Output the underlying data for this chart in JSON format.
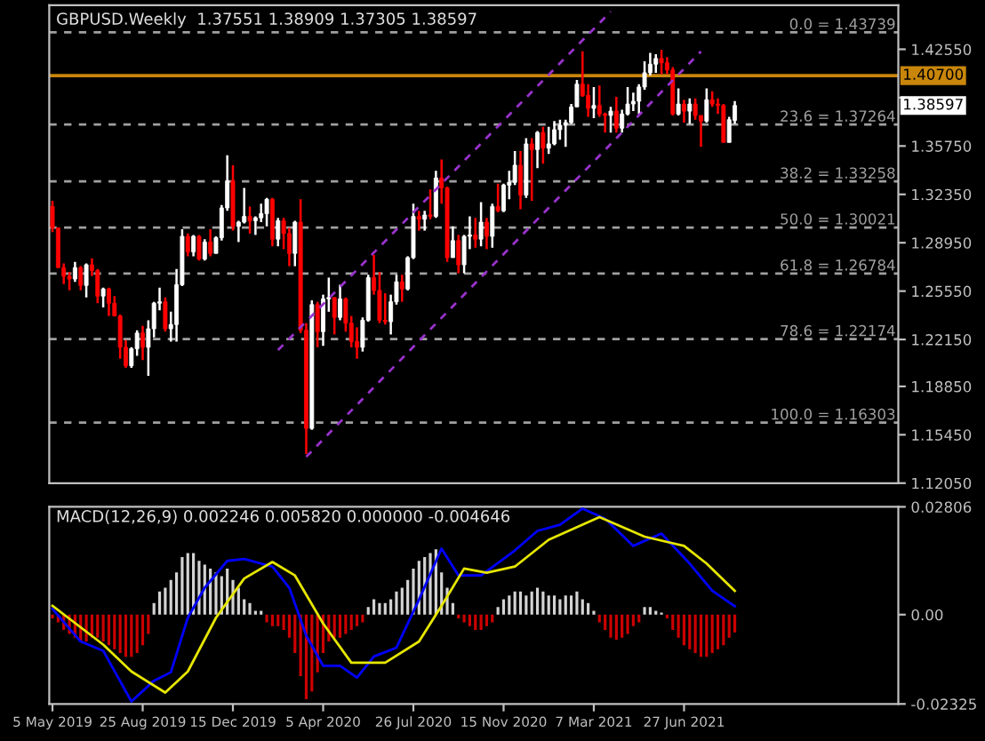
{
  "chart_data": [
    {
      "type": "candlestick",
      "title": "GBPUSD.Weekly  1.37551 1.38909 1.37305 1.38597",
      "x": [
        "2019-05-05",
        "2019-05-12",
        "2019-05-19",
        "2019-05-26",
        "2019-06-02",
        "2019-06-09",
        "2019-06-16",
        "2019-06-23",
        "2019-06-30",
        "2019-07-07",
        "2019-07-14",
        "2019-07-21",
        "2019-07-28",
        "2019-08-04",
        "2019-08-11",
        "2019-08-18",
        "2019-08-25",
        "2019-09-01",
        "2019-09-08",
        "2019-09-15",
        "2019-09-22",
        "2019-09-29",
        "2019-10-06",
        "2019-10-13",
        "2019-10-20",
        "2019-10-27",
        "2019-11-03",
        "2019-11-10",
        "2019-11-17",
        "2019-11-24",
        "2019-12-01",
        "2019-12-08",
        "2019-12-15",
        "2019-12-22",
        "2019-12-29",
        "2020-01-05",
        "2020-01-12",
        "2020-01-19",
        "2020-01-26",
        "2020-02-02",
        "2020-02-09",
        "2020-02-16",
        "2020-02-23",
        "2020-03-01",
        "2020-03-08",
        "2020-03-15",
        "2020-03-22",
        "2020-03-29",
        "2020-04-05",
        "2020-04-12",
        "2020-04-19",
        "2020-04-26",
        "2020-05-03",
        "2020-05-10",
        "2020-05-17",
        "2020-05-24",
        "2020-05-31",
        "2020-06-07",
        "2020-06-14",
        "2020-06-21",
        "2020-06-28",
        "2020-07-05",
        "2020-07-12",
        "2020-07-19",
        "2020-07-26",
        "2020-08-02",
        "2020-08-09",
        "2020-08-16",
        "2020-08-23",
        "2020-08-30",
        "2020-09-06",
        "2020-09-13",
        "2020-09-20",
        "2020-09-27",
        "2020-10-04",
        "2020-10-11",
        "2020-10-18",
        "2020-10-25",
        "2020-11-01",
        "2020-11-08",
        "2020-11-15",
        "2020-11-22",
        "2020-11-29",
        "2020-12-06",
        "2020-12-13",
        "2020-12-20",
        "2020-12-27",
        "2021-01-03",
        "2021-01-10",
        "2021-01-17",
        "2021-01-24",
        "2021-01-31",
        "2021-02-07",
        "2021-02-14",
        "2021-02-21",
        "2021-02-28",
        "2021-03-07",
        "2021-03-14",
        "2021-03-21",
        "2021-03-28",
        "2021-04-04",
        "2021-04-11",
        "2021-04-18",
        "2021-04-25",
        "2021-05-02",
        "2021-05-09",
        "2021-05-16",
        "2021-05-23",
        "2021-05-30",
        "2021-06-06",
        "2021-06-13",
        "2021-06-20",
        "2021-06-27",
        "2021-07-04",
        "2021-07-11",
        "2021-07-18",
        "2021-07-25",
        "2021-08-01",
        "2021-08-08",
        "2021-08-15",
        "2021-08-22",
        "2021-08-29"
      ],
      "ohlc": [
        [
          1.315,
          1.319,
          1.297,
          1.3
        ],
        [
          1.3,
          1.3,
          1.272,
          1.272
        ],
        [
          1.272,
          1.275,
          1.2605,
          1.266
        ],
        [
          1.266,
          1.269,
          1.256,
          1.264
        ],
        [
          1.264,
          1.276,
          1.262,
          1.272
        ],
        [
          1.272,
          1.273,
          1.256,
          1.2595
        ],
        [
          1.2595,
          1.275,
          1.251,
          1.274
        ],
        [
          1.274,
          1.2785,
          1.266,
          1.27
        ],
        [
          1.27,
          1.271,
          1.247,
          1.252
        ],
        [
          1.252,
          1.258,
          1.244,
          1.257
        ],
        [
          1.257,
          1.258,
          1.238,
          1.247
        ],
        [
          1.247,
          1.252,
          1.238,
          1.238
        ],
        [
          1.238,
          1.239,
          1.208,
          1.216
        ],
        [
          1.216,
          1.221,
          1.2015,
          1.203
        ],
        [
          1.203,
          1.216,
          1.2015,
          1.215
        ],
        [
          1.215,
          1.228,
          1.21,
          1.226
        ],
        [
          1.226,
          1.231,
          1.207,
          1.216
        ],
        [
          1.216,
          1.235,
          1.196,
          1.229
        ],
        [
          1.229,
          1.248,
          1.223,
          1.247
        ],
        [
          1.247,
          1.258,
          1.242,
          1.248
        ],
        [
          1.248,
          1.251,
          1.227,
          1.229
        ],
        [
          1.229,
          1.241,
          1.22,
          1.232
        ],
        [
          1.232,
          1.271,
          1.22,
          1.26
        ],
        [
          1.26,
          1.299,
          1.259,
          1.294
        ],
        [
          1.294,
          1.296,
          1.28,
          1.283
        ],
        [
          1.283,
          1.295,
          1.28,
          1.294
        ],
        [
          1.294,
          1.295,
          1.277,
          1.278
        ],
        [
          1.278,
          1.292,
          1.277,
          1.29
        ],
        [
          1.29,
          1.299,
          1.28,
          1.282
        ],
        [
          1.282,
          1.294,
          1.282,
          1.293
        ],
        [
          1.293,
          1.316,
          1.291,
          1.314
        ],
        [
          1.314,
          1.351,
          1.312,
          1.333
        ],
        [
          1.333,
          1.344,
          1.298,
          1.301
        ],
        [
          1.301,
          1.305,
          1.29,
          1.304
        ],
        [
          1.304,
          1.328,
          1.303,
          1.308
        ],
        [
          1.308,
          1.315,
          1.296,
          1.305
        ],
        [
          1.305,
          1.308,
          1.295,
          1.307
        ],
        [
          1.307,
          1.317,
          1.304,
          1.31
        ],
        [
          1.31,
          1.321,
          1.301,
          1.32
        ],
        [
          1.32,
          1.321,
          1.287,
          1.292
        ],
        [
          1.292,
          1.307,
          1.287,
          1.305
        ],
        [
          1.305,
          1.307,
          1.285,
          1.296
        ],
        [
          1.296,
          1.3,
          1.273,
          1.282
        ],
        [
          1.282,
          1.305,
          1.273,
          1.304
        ],
        [
          1.304,
          1.32,
          1.226,
          1.228
        ],
        [
          1.228,
          1.233,
          1.141,
          1.159
        ],
        [
          1.159,
          1.249,
          1.158,
          1.246
        ],
        [
          1.246,
          1.248,
          1.216,
          1.227
        ],
        [
          1.227,
          1.253,
          1.217,
          1.25
        ],
        [
          1.25,
          1.265,
          1.241,
          1.251
        ],
        [
          1.251,
          1.251,
          1.225,
          1.237
        ],
        [
          1.237,
          1.26,
          1.235,
          1.25
        ],
        [
          1.25,
          1.251,
          1.227,
          1.233
        ],
        [
          1.233,
          1.238,
          1.216,
          1.22
        ],
        [
          1.22,
          1.23,
          1.208,
          1.216
        ],
        [
          1.216,
          1.237,
          1.213,
          1.235
        ],
        [
          1.235,
          1.267,
          1.234,
          1.265
        ],
        [
          1.265,
          1.281,
          1.253,
          1.256
        ],
        [
          1.256,
          1.269,
          1.233,
          1.235
        ],
        [
          1.235,
          1.254,
          1.232,
          1.234
        ],
        [
          1.234,
          1.253,
          1.225,
          1.248
        ],
        [
          1.248,
          1.267,
          1.246,
          1.262
        ],
        [
          1.262,
          1.267,
          1.248,
          1.257
        ],
        [
          1.257,
          1.28,
          1.256,
          1.279
        ],
        [
          1.279,
          1.317,
          1.278,
          1.308
        ],
        [
          1.308,
          1.312,
          1.298,
          1.306
        ],
        [
          1.306,
          1.312,
          1.298,
          1.309
        ],
        [
          1.309,
          1.327,
          1.306,
          1.308
        ],
        [
          1.308,
          1.34,
          1.307,
          1.335
        ],
        [
          1.335,
          1.348,
          1.317,
          1.328
        ],
        [
          1.328,
          1.329,
          1.276,
          1.279
        ],
        [
          1.279,
          1.301,
          1.279,
          1.291
        ],
        [
          1.291,
          1.295,
          1.268,
          1.274
        ],
        [
          1.274,
          1.295,
          1.268,
          1.294
        ],
        [
          1.294,
          1.308,
          1.285,
          1.295
        ],
        [
          1.295,
          1.307,
          1.286,
          1.292
        ],
        [
          1.292,
          1.318,
          1.287,
          1.304
        ],
        [
          1.304,
          1.307,
          1.285,
          1.294
        ],
        [
          1.294,
          1.317,
          1.286,
          1.315
        ],
        [
          1.315,
          1.331,
          1.311,
          1.312
        ],
        [
          1.312,
          1.331,
          1.311,
          1.33
        ],
        [
          1.33,
          1.34,
          1.32,
          1.332
        ],
        [
          1.332,
          1.354,
          1.33,
          1.344
        ],
        [
          1.344,
          1.354,
          1.313,
          1.323
        ],
        [
          1.323,
          1.363,
          1.321,
          1.359
        ],
        [
          1.359,
          1.363,
          1.319,
          1.355
        ],
        [
          1.355,
          1.368,
          1.342,
          1.367
        ],
        [
          1.367,
          1.371,
          1.345,
          1.356
        ],
        [
          1.356,
          1.371,
          1.352,
          1.359
        ],
        [
          1.359,
          1.375,
          1.358,
          1.369
        ],
        [
          1.369,
          1.376,
          1.362,
          1.372
        ],
        [
          1.372,
          1.376,
          1.357,
          1.374
        ],
        [
          1.374,
          1.387,
          1.373,
          1.385
        ],
        [
          1.385,
          1.404,
          1.385,
          1.401
        ],
        [
          1.401,
          1.424,
          1.392,
          1.393
        ],
        [
          1.393,
          1.401,
          1.378,
          1.384
        ],
        [
          1.384,
          1.399,
          1.377,
          1.386
        ],
        [
          1.386,
          1.4,
          1.378,
          1.38
        ],
        [
          1.38,
          1.381,
          1.367,
          1.379
        ],
        [
          1.379,
          1.385,
          1.367,
          1.382
        ],
        [
          1.382,
          1.392,
          1.367,
          1.37
        ],
        [
          1.37,
          1.383,
          1.367,
          1.38
        ],
        [
          1.38,
          1.399,
          1.379,
          1.387
        ],
        [
          1.387,
          1.395,
          1.382,
          1.389
        ],
        [
          1.389,
          1.401,
          1.38,
          1.399
        ],
        [
          1.399,
          1.417,
          1.397,
          1.409
        ],
        [
          1.409,
          1.423,
          1.407,
          1.415
        ],
        [
          1.415,
          1.422,
          1.409,
          1.419
        ],
        [
          1.419,
          1.425,
          1.408,
          1.416
        ],
        [
          1.416,
          1.42,
          1.408,
          1.411
        ],
        [
          1.411,
          1.413,
          1.379,
          1.38
        ],
        [
          1.38,
          1.398,
          1.379,
          1.387
        ],
        [
          1.387,
          1.39,
          1.374,
          1.382
        ],
        [
          1.382,
          1.391,
          1.373,
          1.387
        ],
        [
          1.387,
          1.391,
          1.376,
          1.379
        ],
        [
          1.379,
          1.379,
          1.357,
          1.375
        ],
        [
          1.375,
          1.398,
          1.374,
          1.39
        ],
        [
          1.39,
          1.396,
          1.385,
          1.387
        ],
        [
          1.387,
          1.391,
          1.38,
          1.386
        ],
        [
          1.386,
          1.387,
          1.36,
          1.36
        ],
        [
          1.36,
          1.378,
          1.36,
          1.376
        ],
        [
          1.37551,
          1.38909,
          1.37305,
          1.38597
        ]
      ],
      "colors": [
        "#ff0000",
        "#ff0000",
        "#ff0000",
        "#ff0000",
        "#ffffff",
        "#ff0000",
        "#ffffff",
        "#ff0000",
        "#ff0000",
        "#ffffff",
        "#ff0000",
        "#ff0000",
        "#ff0000",
        "#ff0000",
        "#ffffff",
        "#ffffff",
        "#ff0000",
        "#ffffff",
        "#ffffff",
        "#ffffff",
        "#ff0000",
        "#ffffff",
        "#ffffff",
        "#ffffff",
        "#ff0000",
        "#ffffff",
        "#ff0000",
        "#ffffff",
        "#ff0000",
        "#ffffff",
        "#ffffff",
        "#ffffff",
        "#ff0000",
        "#ffffff",
        "#ffffff",
        "#ff0000",
        "#ffffff",
        "#ffffff",
        "#ffffff",
        "#ff0000",
        "#ffffff",
        "#ff0000",
        "#ff0000",
        "#ffffff",
        "#ff0000",
        "#ff0000",
        "#ffffff",
        "#ff0000",
        "#ffffff",
        "#ffffff",
        "#ff0000",
        "#ffffff",
        "#ff0000",
        "#ff0000",
        "#ff0000",
        "#ffffff",
        "#ffffff",
        "#ff0000",
        "#ff0000",
        "#ff0000",
        "#ffffff",
        "#ffffff",
        "#ff0000",
        "#ffffff",
        "#ffffff",
        "#ff0000",
        "#ffffff",
        "#ff0000",
        "#ffffff",
        "#ff0000",
        "#ff0000",
        "#ffffff",
        "#ff0000",
        "#ffffff",
        "#ffffff",
        "#ff0000",
        "#ffffff",
        "#ff0000",
        "#ffffff",
        "#ff0000",
        "#ffffff",
        "#ffffff",
        "#ffffff",
        "#ff0000",
        "#ffffff",
        "#ff0000",
        "#ffffff",
        "#ff0000",
        "#ffffff",
        "#ffffff",
        "#ffffff",
        "#ffffff",
        "#ffffff",
        "#ffffff",
        "#ff0000",
        "#ff0000",
        "#ffffff",
        "#ff0000",
        "#ff0000",
        "#ffffff",
        "#ff0000",
        "#ffffff",
        "#ffffff",
        "#ffffff",
        "#ffffff",
        "#ffffff",
        "#ffffff",
        "#ffffff",
        "#ff0000",
        "#ff0000",
        "#ff0000",
        "#ffffff",
        "#ff0000",
        "#ffffff",
        "#ff0000",
        "#ff0000",
        "#ffffff",
        "#ff0000",
        "#ff0000",
        "#ff0000",
        "#ffffff",
        "#ffffff"
      ],
      "series": [
        {
          "type": "line",
          "color": "#9932cc",
          "line_style": "dashed",
          "x": [
            "2020-02-09",
            "2021-03-28"
          ],
          "values": [
            1.214,
            1.452
          ]
        },
        {
          "type": "line",
          "color": "#9932cc",
          "line_style": "dashed",
          "x": [
            "2020-03-15",
            "2021-07-18"
          ],
          "values": [
            1.139,
            1.424
          ]
        }
      ],
      "ref_lines": [
        {
          "axis": "y",
          "value": 1.43739,
          "label": "0.0 = 1.43739",
          "color": "#a0a0a0",
          "line_style": "dashed"
        },
        {
          "axis": "y",
          "value": 1.407,
          "label": "1.40700",
          "color": "#c8860a",
          "line_style": "solid"
        },
        {
          "axis": "y",
          "value": 1.37264,
          "label": "23.6 = 1.37264",
          "color": "#a0a0a0",
          "line_style": "dashed"
        },
        {
          "axis": "y",
          "value": 1.33258,
          "label": "38.2 = 1.33258",
          "color": "#a0a0a0",
          "line_style": "dashed"
        },
        {
          "axis": "y",
          "value": 1.30021,
          "label": "50.0 = 1.30021",
          "color": "#a0a0a0",
          "line_style": "dashed"
        },
        {
          "axis": "y",
          "value": 1.26784,
          "label": "61.8 = 1.26784",
          "color": "#a0a0a0",
          "line_style": "dashed"
        },
        {
          "axis": "y",
          "value": 1.22174,
          "label": "78.6 = 1.22174",
          "color": "#a0a0a0",
          "line_style": "dashed"
        },
        {
          "axis": "y",
          "value": 1.16303,
          "label": "100.0 = 1.16303",
          "color": "#a0a0a0",
          "line_style": "dashed"
        }
      ],
      "annotations": [
        "1.38597"
      ],
      "xlim": [
        "2019-05-01",
        "2022-03-20"
      ],
      "ylim": [
        1.1205,
        1.4565
      ],
      "yticks": [
        {
          "value": 1.4255,
          "label": "1.42550"
        },
        {
          "value": 1.3915,
          "label": null
        },
        {
          "value": 1.3575,
          "label": "1.35750"
        },
        {
          "value": 1.3235,
          "label": "1.32350"
        },
        {
          "value": 1.2895,
          "label": "1.28950"
        },
        {
          "value": 1.2555,
          "label": "1.25550"
        },
        {
          "value": 1.2215,
          "label": "1.22150"
        },
        {
          "value": 1.1885,
          "label": "1.18850"
        },
        {
          "value": 1.1545,
          "label": "1.15450"
        },
        {
          "value": 1.1205,
          "label": "1.12050"
        }
      ],
      "tick_labels": "y"
    },
    {
      "type": "bar",
      "title": "MACD(12,26,9) 0.002246 0.005820 0.000000 -0.004646",
      "x": [
        "2019-05-05",
        "2019-05-12",
        "2019-05-19",
        "2019-05-26",
        "2019-06-02",
        "2019-06-09",
        "2019-06-16",
        "2019-06-23",
        "2019-06-30",
        "2019-07-07",
        "2019-07-14",
        "2019-07-21",
        "2019-07-28",
        "2019-08-04",
        "2019-08-11",
        "2019-08-18",
        "2019-08-25",
        "2019-09-01",
        "2019-09-08",
        "2019-09-15",
        "2019-09-22",
        "2019-09-29",
        "2019-10-06",
        "2019-10-13",
        "2019-10-20",
        "2019-10-27",
        "2019-11-03",
        "2019-11-10",
        "2019-11-17",
        "2019-11-24",
        "2019-12-01",
        "2019-12-08",
        "2019-12-15",
        "2019-12-22",
        "2019-12-29",
        "2020-01-05",
        "2020-01-12",
        "2020-01-19",
        "2020-01-26",
        "2020-02-02",
        "2020-02-09",
        "2020-02-16",
        "2020-02-23",
        "2020-03-01",
        "2020-03-08",
        "2020-03-15",
        "2020-03-22",
        "2020-03-29",
        "2020-04-05",
        "2020-04-12",
        "2020-04-19",
        "2020-04-26",
        "2020-05-03",
        "2020-05-10",
        "2020-05-17",
        "2020-05-24",
        "2020-05-31",
        "2020-06-07",
        "2020-06-14",
        "2020-06-21",
        "2020-06-28",
        "2020-07-05",
        "2020-07-12",
        "2020-07-19",
        "2020-07-26",
        "2020-08-02",
        "2020-08-09",
        "2020-08-16",
        "2020-08-23",
        "2020-08-30",
        "2020-09-06",
        "2020-09-13",
        "2020-09-20",
        "2020-09-27",
        "2020-10-04",
        "2020-10-11",
        "2020-10-18",
        "2020-10-25",
        "2020-11-01",
        "2020-11-08",
        "2020-11-15",
        "2020-11-22",
        "2020-11-29",
        "2020-12-06",
        "2020-12-13",
        "2020-12-20",
        "2020-12-27",
        "2021-01-03",
        "2021-01-10",
        "2021-01-17",
        "2021-01-24",
        "2021-01-31",
        "2021-02-07",
        "2021-02-14",
        "2021-02-21",
        "2021-02-28",
        "2021-03-07",
        "2021-03-14",
        "2021-03-21",
        "2021-03-28",
        "2021-04-04",
        "2021-04-11",
        "2021-04-18",
        "2021-04-25",
        "2021-05-02",
        "2021-05-09",
        "2021-05-16",
        "2021-05-23",
        "2021-05-30",
        "2021-06-06",
        "2021-06-13",
        "2021-06-20",
        "2021-06-27",
        "2021-07-04",
        "2021-07-11",
        "2021-07-18",
        "2021-07-25",
        "2021-08-01",
        "2021-08-08",
        "2021-08-15",
        "2021-08-22",
        "2021-08-29"
      ],
      "series": [
        {
          "type": "bar",
          "values": [
            -0.001,
            -0.002,
            -0.004,
            -0.005,
            -0.006,
            -0.007,
            -0.007,
            -0.006,
            -0.006,
            -0.007,
            -0.008,
            -0.009,
            -0.01,
            -0.011,
            -0.011,
            -0.01,
            -0.008,
            -0.005,
            0.003,
            0.006,
            0.007,
            0.009,
            0.011,
            0.015,
            0.016,
            0.016,
            0.014,
            0.013,
            0.012,
            0.011,
            0.01,
            0.012,
            0.009,
            0.007,
            0.004,
            0.003,
            0.001,
            0.001,
            -0.002,
            -0.003,
            -0.003,
            -0.004,
            -0.006,
            -0.01,
            -0.016,
            -0.022,
            -0.02,
            -0.015,
            -0.01,
            -0.007,
            -0.006,
            -0.006,
            -0.005,
            -0.004,
            -0.003,
            -0.002,
            0.002,
            0.004,
            0.003,
            0.003,
            0.004,
            0.006,
            0.007,
            0.009,
            0.012,
            0.014,
            0.015,
            0.016,
            0.017,
            0.011,
            0.007,
            0.003,
            -0.001,
            -0.002,
            -0.003,
            -0.004,
            -0.004,
            -0.003,
            -0.002,
            0.002,
            0.004,
            0.005,
            0.006,
            0.006,
            0.005,
            0.006,
            0.007,
            0.006,
            0.005,
            0.005,
            0.004,
            0.005,
            0.005,
            0.006,
            0.004,
            0.003,
            0.001,
            -0.002,
            -0.004,
            -0.006,
            -0.0065,
            -0.006,
            -0.005,
            -0.003,
            -0.002,
            0.002,
            0.002,
            0.001,
            0.0005,
            -0.001,
            -0.004,
            -0.006,
            -0.008,
            -0.009,
            -0.01,
            -0.011,
            -0.011,
            -0.01,
            -0.009,
            -0.008,
            -0.006,
            -0.0046
          ],
          "colors": [
            "#cc0000",
            "#cc0000",
            "#cc0000",
            "#cc0000",
            "#cc0000",
            "#cc0000",
            "#cc0000",
            "#cc0000",
            "#cc0000",
            "#cc0000",
            "#cc0000",
            "#cc0000",
            "#cc0000",
            "#cc0000",
            "#cc0000",
            "#cc0000",
            "#cc0000",
            "#cc0000",
            "#d3d3d3",
            "#d3d3d3",
            "#d3d3d3",
            "#d3d3d3",
            "#d3d3d3",
            "#d3d3d3",
            "#d3d3d3",
            "#d3d3d3",
            "#d3d3d3",
            "#d3d3d3",
            "#d3d3d3",
            "#d3d3d3",
            "#d3d3d3",
            "#d3d3d3",
            "#d3d3d3",
            "#d3d3d3",
            "#d3d3d3",
            "#d3d3d3",
            "#d3d3d3",
            "#d3d3d3",
            "#cc0000",
            "#cc0000",
            "#cc0000",
            "#cc0000",
            "#cc0000",
            "#cc0000",
            "#cc0000",
            "#cc0000",
            "#cc0000",
            "#cc0000",
            "#cc0000",
            "#cc0000",
            "#cc0000",
            "#cc0000",
            "#cc0000",
            "#cc0000",
            "#cc0000",
            "#cc0000",
            "#d3d3d3",
            "#d3d3d3",
            "#d3d3d3",
            "#d3d3d3",
            "#d3d3d3",
            "#d3d3d3",
            "#d3d3d3",
            "#d3d3d3",
            "#d3d3d3",
            "#d3d3d3",
            "#d3d3d3",
            "#d3d3d3",
            "#d3d3d3",
            "#d3d3d3",
            "#d3d3d3",
            "#d3d3d3",
            "#cc0000",
            "#cc0000",
            "#cc0000",
            "#cc0000",
            "#cc0000",
            "#cc0000",
            "#cc0000",
            "#d3d3d3",
            "#d3d3d3",
            "#d3d3d3",
            "#d3d3d3",
            "#d3d3d3",
            "#d3d3d3",
            "#d3d3d3",
            "#d3d3d3",
            "#d3d3d3",
            "#d3d3d3",
            "#d3d3d3",
            "#d3d3d3",
            "#d3d3d3",
            "#d3d3d3",
            "#d3d3d3",
            "#d3d3d3",
            "#d3d3d3",
            "#d3d3d3",
            "#cc0000",
            "#cc0000",
            "#cc0000",
            "#cc0000",
            "#cc0000",
            "#cc0000",
            "#cc0000",
            "#cc0000",
            "#d3d3d3",
            "#d3d3d3",
            "#d3d3d3",
            "#d3d3d3",
            "#cc0000",
            "#cc0000",
            "#cc0000",
            "#cc0000",
            "#cc0000",
            "#cc0000",
            "#cc0000",
            "#cc0000",
            "#cc0000",
            "#cc0000",
            "#cc0000",
            "#cc0000",
            "#cc0000"
          ]
        },
        {
          "type": "line",
          "color": "#0000ff",
          "x": [
            "2019-05-05",
            "2019-06-09",
            "2019-07-07",
            "2019-08-11",
            "2019-09-08",
            "2019-09-29",
            "2019-10-20",
            "2019-11-10",
            "2019-12-08",
            "2019-12-29",
            "2020-02-02",
            "2020-02-23",
            "2020-03-15",
            "2020-04-05",
            "2020-04-26",
            "2020-05-17",
            "2020-06-07",
            "2020-07-05",
            "2020-08-02",
            "2020-08-30",
            "2020-09-20",
            "2020-10-18",
            "2020-11-29",
            "2020-12-27",
            "2021-01-24",
            "2021-02-21",
            "2021-03-21",
            "2021-04-25",
            "2021-05-30",
            "2021-07-04",
            "2021-08-01",
            "2021-08-29"
          ],
          "values": [
            0.0015,
            -0.007,
            -0.0094,
            -0.0226,
            -0.0172,
            -0.015,
            -0.0008,
            0.007,
            0.014,
            0.0145,
            0.0125,
            0.007,
            -0.0055,
            -0.0133,
            -0.0133,
            -0.0164,
            -0.0109,
            -0.0086,
            0.0039,
            0.0172,
            0.0102,
            0.0102,
            0.0167,
            0.0218,
            0.0234,
            0.0276,
            0.025,
            0.0179,
            0.0211,
            0.0133,
            0.0062,
            0.0022
          ]
        },
        {
          "type": "line",
          "color": "#e6e600",
          "x": [
            "2019-05-05",
            "2019-07-07",
            "2019-08-11",
            "2019-09-22",
            "2019-10-20",
            "2019-11-24",
            "2019-12-29",
            "2020-02-02",
            "2020-03-01",
            "2020-04-05",
            "2020-05-10",
            "2020-06-21",
            "2020-08-02",
            "2020-08-30",
            "2020-09-27",
            "2020-10-25",
            "2020-11-29",
            "2021-01-10",
            "2021-03-14",
            "2021-05-09",
            "2021-06-27",
            "2021-07-25",
            "2021-08-29"
          ],
          "values": [
            0.0023,
            -0.0078,
            -0.0148,
            -0.0203,
            -0.0148,
            -0.0008,
            0.0094,
            0.0137,
            0.0102,
            -0.0023,
            -0.0125,
            -0.0125,
            -0.007,
            0.0023,
            0.012,
            0.0109,
            0.0125,
            0.0195,
            0.0254,
            0.0203,
            0.0179,
            0.0133,
            0.0062
          ]
        }
      ],
      "xlim": [
        "2019-05-01",
        "2022-03-20"
      ],
      "xticks": [
        {
          "value": "2019-05-05",
          "label": "5 May 2019"
        },
        {
          "value": "2019-08-25",
          "label": "25 Aug 2019"
        },
        {
          "value": "2019-12-15",
          "label": "15 Dec 2019"
        },
        {
          "value": "2020-04-05",
          "label": "5 Apr 2020"
        },
        {
          "value": "2020-07-26",
          "label": "26 Jul 2020"
        },
        {
          "value": "2020-11-15",
          "label": "15 Nov 2020"
        },
        {
          "value": "2021-03-07",
          "label": "7 Mar 2021"
        },
        {
          "value": "2021-06-27",
          "label": "27 Jun 2021"
        }
      ],
      "ylim": [
        -0.02325,
        0.02806
      ],
      "yticks": [
        {
          "value": 0.02806,
          "label": "0.02806"
        },
        {
          "value": 0,
          "label": "0.00"
        },
        {
          "value": -0.02325,
          "label": "-0.02325"
        }
      ]
    }
  ]
}
